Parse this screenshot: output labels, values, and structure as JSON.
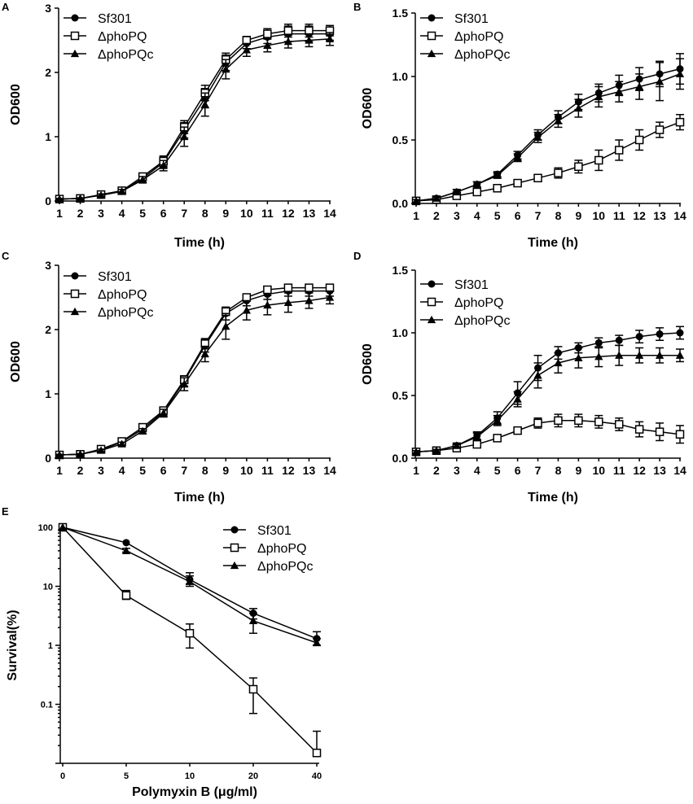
{
  "figure": {
    "panel_letters": [
      "A",
      "B",
      "C",
      "D",
      "E"
    ]
  },
  "chart_data": [
    {
      "panel": "A",
      "type": "line",
      "title": "",
      "xlabel": "Time (h)",
      "ylabel": "OD600",
      "x": [
        1,
        2,
        3,
        4,
        5,
        6,
        7,
        8,
        9,
        10,
        11,
        12,
        13,
        14
      ],
      "xticks": [
        "1",
        "2",
        "3",
        "4",
        "5",
        "6",
        "7",
        "8",
        "9",
        "10",
        "11",
        "12",
        "13",
        "14"
      ],
      "ylim": [
        0,
        3
      ],
      "yticks": [
        "0",
        "1",
        "2",
        "3"
      ],
      "legend": "top-left",
      "series": [
        {
          "name": "Sf301",
          "marker": "circle",
          "values": [
            0.03,
            0.04,
            0.09,
            0.15,
            0.35,
            0.6,
            1.1,
            1.6,
            2.15,
            2.45,
            2.55,
            2.6,
            2.6,
            2.6
          ],
          "errors": [
            0.01,
            0.01,
            0.02,
            0.03,
            0.05,
            0.08,
            0.12,
            0.15,
            0.12,
            0.08,
            0.1,
            0.12,
            0.12,
            0.1
          ]
        },
        {
          "name": "ΔphoPQ",
          "marker": "square-open",
          "values": [
            0.03,
            0.04,
            0.1,
            0.16,
            0.38,
            0.62,
            1.15,
            1.68,
            2.2,
            2.5,
            2.6,
            2.65,
            2.65,
            2.65
          ],
          "errors": [
            0.01,
            0.01,
            0.02,
            0.03,
            0.05,
            0.08,
            0.1,
            0.12,
            0.1,
            0.06,
            0.08,
            0.1,
            0.1,
            0.08
          ]
        },
        {
          "name": "ΔphoPQc",
          "marker": "triangle",
          "values": [
            0.03,
            0.04,
            0.09,
            0.15,
            0.33,
            0.55,
            1.0,
            1.5,
            2.05,
            2.35,
            2.42,
            2.48,
            2.5,
            2.52
          ],
          "errors": [
            0.01,
            0.01,
            0.02,
            0.03,
            0.05,
            0.08,
            0.15,
            0.18,
            0.15,
            0.1,
            0.1,
            0.1,
            0.1,
            0.1
          ]
        }
      ]
    },
    {
      "panel": "B",
      "type": "line",
      "title": "",
      "xlabel": "Time (h)",
      "ylabel": "OD600",
      "x": [
        1,
        2,
        3,
        4,
        5,
        6,
        7,
        8,
        9,
        10,
        11,
        12,
        13,
        14
      ],
      "xticks": [
        "1",
        "2",
        "3",
        "4",
        "5",
        "6",
        "7",
        "8",
        "9",
        "10",
        "11",
        "12",
        "13",
        "14"
      ],
      "ylim": [
        0,
        1.5
      ],
      "yticks": [
        "0.0",
        "0.5",
        "1.0",
        "1.5"
      ],
      "legend": "top-left",
      "series": [
        {
          "name": "Sf301",
          "marker": "circle",
          "values": [
            0.02,
            0.04,
            0.09,
            0.15,
            0.23,
            0.38,
            0.54,
            0.68,
            0.8,
            0.87,
            0.93,
            0.98,
            1.02,
            1.06
          ],
          "errors": [
            0.01,
            0.01,
            0.02,
            0.02,
            0.02,
            0.03,
            0.04,
            0.05,
            0.06,
            0.07,
            0.08,
            0.09,
            0.1,
            0.12
          ]
        },
        {
          "name": "ΔphoPQ",
          "marker": "square-open",
          "values": [
            0.02,
            0.03,
            0.06,
            0.09,
            0.12,
            0.16,
            0.2,
            0.24,
            0.29,
            0.34,
            0.42,
            0.5,
            0.58,
            0.64
          ],
          "errors": [
            0.01,
            0.01,
            0.01,
            0.01,
            0.01,
            0.02,
            0.02,
            0.04,
            0.05,
            0.08,
            0.08,
            0.08,
            0.06,
            0.06
          ]
        },
        {
          "name": "ΔphoPQc",
          "marker": "triangle",
          "values": [
            0.02,
            0.04,
            0.09,
            0.15,
            0.22,
            0.36,
            0.52,
            0.65,
            0.75,
            0.84,
            0.88,
            0.92,
            0.96,
            1.02
          ],
          "errors": [
            0.01,
            0.01,
            0.02,
            0.02,
            0.02,
            0.03,
            0.04,
            0.05,
            0.07,
            0.08,
            0.08,
            0.1,
            0.15,
            0.12
          ]
        }
      ]
    },
    {
      "panel": "C",
      "type": "line",
      "title": "",
      "xlabel": "Time (h)",
      "ylabel": "OD600",
      "x": [
        1,
        2,
        3,
        4,
        5,
        6,
        7,
        8,
        9,
        10,
        11,
        12,
        13,
        14
      ],
      "xticks": [
        "1",
        "2",
        "3",
        "4",
        "5",
        "6",
        "7",
        "8",
        "9",
        "10",
        "11",
        "12",
        "13",
        "14"
      ],
      "ylim": [
        0,
        3
      ],
      "yticks": [
        "0",
        "1",
        "2",
        "3"
      ],
      "legend": "top-left",
      "series": [
        {
          "name": "Sf301",
          "marker": "circle",
          "values": [
            0.05,
            0.06,
            0.13,
            0.25,
            0.45,
            0.72,
            1.2,
            1.75,
            2.25,
            2.45,
            2.55,
            2.6,
            2.6,
            2.6
          ],
          "errors": [
            0.01,
            0.01,
            0.02,
            0.03,
            0.04,
            0.06,
            0.08,
            0.1,
            0.1,
            0.08,
            0.08,
            0.08,
            0.08,
            0.08
          ]
        },
        {
          "name": "ΔphoPQ",
          "marker": "square-open",
          "values": [
            0.05,
            0.06,
            0.14,
            0.26,
            0.48,
            0.74,
            1.22,
            1.78,
            2.28,
            2.5,
            2.62,
            2.65,
            2.65,
            2.65
          ],
          "errors": [
            0.01,
            0.01,
            0.02,
            0.03,
            0.04,
            0.05,
            0.06,
            0.08,
            0.06,
            0.05,
            0.05,
            0.05,
            0.05,
            0.05
          ]
        },
        {
          "name": "ΔphoPQc",
          "marker": "triangle",
          "values": [
            0.05,
            0.06,
            0.12,
            0.22,
            0.42,
            0.7,
            1.15,
            1.62,
            2.05,
            2.3,
            2.38,
            2.42,
            2.45,
            2.5
          ],
          "errors": [
            0.01,
            0.01,
            0.02,
            0.03,
            0.04,
            0.06,
            0.1,
            0.12,
            0.2,
            0.15,
            0.15,
            0.15,
            0.12,
            0.1
          ]
        }
      ]
    },
    {
      "panel": "D",
      "type": "line",
      "title": "",
      "xlabel": "Time (h)",
      "ylabel": "OD600",
      "x": [
        1,
        2,
        3,
        4,
        5,
        6,
        7,
        8,
        9,
        10,
        11,
        12,
        13,
        14
      ],
      "xticks": [
        "1",
        "2",
        "3",
        "4",
        "5",
        "6",
        "7",
        "8",
        "9",
        "10",
        "11",
        "12",
        "13",
        "14"
      ],
      "ylim": [
        0,
        1.5
      ],
      "yticks": [
        "0.0",
        "0.5",
        "1.0",
        "1.5"
      ],
      "legend": "top-left",
      "series": [
        {
          "name": "Sf301",
          "marker": "circle",
          "values": [
            0.05,
            0.06,
            0.1,
            0.18,
            0.32,
            0.52,
            0.72,
            0.84,
            0.88,
            0.92,
            0.94,
            0.97,
            0.99,
            1.0
          ],
          "errors": [
            0.01,
            0.01,
            0.02,
            0.03,
            0.05,
            0.09,
            0.1,
            0.05,
            0.04,
            0.04,
            0.04,
            0.05,
            0.05,
            0.05
          ]
        },
        {
          "name": "ΔphoPQ",
          "marker": "square-open",
          "values": [
            0.05,
            0.06,
            0.08,
            0.11,
            0.16,
            0.22,
            0.28,
            0.3,
            0.3,
            0.29,
            0.27,
            0.23,
            0.21,
            0.19
          ],
          "errors": [
            0.01,
            0.01,
            0.01,
            0.01,
            0.01,
            0.02,
            0.04,
            0.05,
            0.05,
            0.05,
            0.05,
            0.06,
            0.07,
            0.07
          ]
        },
        {
          "name": "ΔphoPQc",
          "marker": "triangle",
          "values": [
            0.05,
            0.06,
            0.1,
            0.17,
            0.3,
            0.47,
            0.66,
            0.76,
            0.8,
            0.81,
            0.82,
            0.82,
            0.82,
            0.82
          ],
          "errors": [
            0.01,
            0.01,
            0.02,
            0.03,
            0.04,
            0.06,
            0.1,
            0.08,
            0.08,
            0.08,
            0.08,
            0.06,
            0.06,
            0.05
          ]
        }
      ]
    },
    {
      "panel": "E",
      "type": "line",
      "title": "",
      "xlabel": "Polymyxin B (μg/ml)",
      "ylabel": "Survival(%)",
      "yscale": "log",
      "x": [
        0,
        5,
        10,
        20,
        40
      ],
      "xticks": [
        "0",
        "5",
        "10",
        "20",
        "40"
      ],
      "ylim": [
        0.01,
        100
      ],
      "yticks": [
        "0.1",
        "1",
        "10",
        "100"
      ],
      "legend": "top-right",
      "series": [
        {
          "name": "Sf301",
          "marker": "circle",
          "values": [
            100,
            55,
            13,
            3.5,
            1.3
          ],
          "errors_low": [
            100,
            55,
            11,
            2.8,
            1.0
          ],
          "errors_high": [
            100,
            55,
            17,
            4.2,
            1.7
          ]
        },
        {
          "name": "ΔphoPQ",
          "marker": "square-open",
          "values": [
            100,
            7,
            1.6,
            0.18,
            0.015
          ],
          "errors_low": [
            100,
            6,
            0.9,
            0.07,
            0.015
          ],
          "errors_high": [
            100,
            8.5,
            2.3,
            0.28,
            0.035
          ]
        },
        {
          "name": "ΔphoPQc",
          "marker": "triangle",
          "values": [
            100,
            40,
            12,
            2.6,
            1.1
          ],
          "errors_low": [
            100,
            38,
            10,
            1.6,
            1.0
          ],
          "errors_high": [
            100,
            44,
            15,
            3.5,
            1.3
          ]
        }
      ]
    }
  ]
}
